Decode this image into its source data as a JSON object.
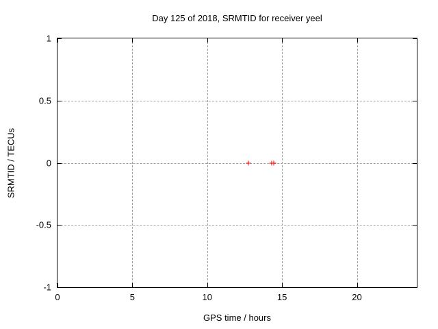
{
  "figure": {
    "background": "#ffffff",
    "border_color": "#000000",
    "grid_color": "#a0a0a0",
    "marker_color": "#ff0000",
    "text_color": "#000000"
  },
  "chart_data": {
    "type": "scatter",
    "title": "Day 125 of 2018, SRMTID for receiver yeel",
    "xlabel": "GPS time / hours",
    "ylabel": "SRMTID / TECUs",
    "xlim": [
      0,
      24
    ],
    "ylim": [
      -1,
      1
    ],
    "xticks": [
      {
        "value": 0,
        "label": "0"
      },
      {
        "value": 5,
        "label": "5"
      },
      {
        "value": 10,
        "label": "10"
      },
      {
        "value": 15,
        "label": "15"
      },
      {
        "value": 20,
        "label": "20"
      }
    ],
    "yticks": [
      {
        "value": 1,
        "label": "1"
      },
      {
        "value": 0.5,
        "label": "0.5"
      },
      {
        "value": 0,
        "label": "0"
      },
      {
        "value": -0.5,
        "label": "-0.5"
      },
      {
        "value": -1,
        "label": "-1"
      }
    ],
    "grid_x": [
      5,
      10,
      15,
      20
    ],
    "grid_y": [
      0.5,
      0,
      -0.5
    ],
    "grid": true,
    "grid_style": "dashed",
    "legend": "none",
    "marker": "plus",
    "series": [
      {
        "name": "SRMTID",
        "points": [
          {
            "x": 12.74,
            "y": 0
          },
          {
            "x": 14.29,
            "y": 0
          },
          {
            "x": 14.45,
            "y": 0
          }
        ]
      }
    ]
  }
}
